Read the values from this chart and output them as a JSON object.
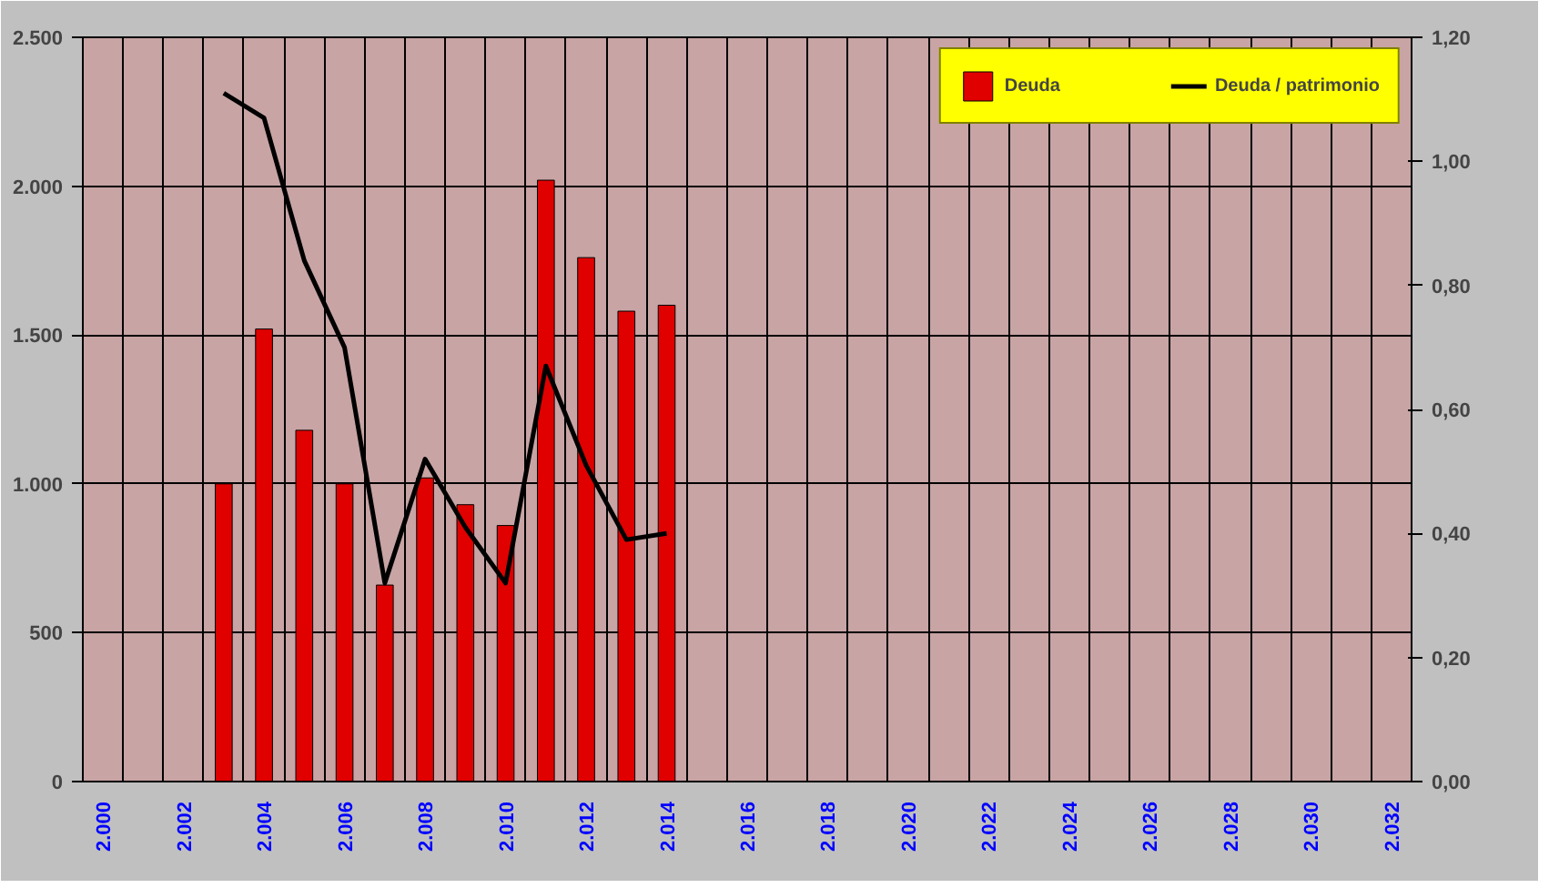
{
  "chart_data": {
    "type": "bar",
    "categories": [
      "2.000",
      null,
      "2.002",
      null,
      "2.004",
      null,
      "2.006",
      null,
      "2.008",
      null,
      "2.010",
      null,
      "2.012",
      null,
      "2.014",
      null,
      "2.016",
      null,
      "2.018",
      null,
      "2.020",
      null,
      "2.022",
      null,
      "2.024",
      null,
      "2.026",
      null,
      "2.028",
      null,
      "2.030",
      null,
      "2.032"
    ],
    "series": [
      {
        "name": "Deuda",
        "color": "#e00000",
        "values": [
          null,
          null,
          null,
          1000,
          1520,
          1180,
          1000,
          660,
          1020,
          930,
          860,
          2020,
          1760,
          1580,
          1600,
          null,
          null,
          null,
          null,
          null,
          null,
          null,
          null,
          null,
          null,
          null,
          null,
          null,
          null,
          null,
          null,
          null,
          null
        ]
      },
      {
        "name": "Deuda / patrimonio",
        "type": "line",
        "axis": "y2",
        "color": "#000000",
        "values": [
          null,
          null,
          null,
          1.11,
          1.07,
          0.84,
          0.7,
          0.32,
          0.52,
          0.41,
          0.32,
          0.67,
          0.51,
          0.39,
          0.4,
          null,
          null,
          null,
          null,
          null,
          null,
          null,
          null,
          null,
          null,
          null,
          null,
          null,
          null,
          null,
          null,
          null,
          null
        ]
      }
    ],
    "ylim": [
      0,
      2500
    ],
    "yticks": [
      0,
      500,
      {
        "value": 1000,
        "label": "1.000"
      },
      {
        "value": 1500,
        "label": "1.500"
      },
      {
        "value": 2000,
        "label": "2.000"
      },
      {
        "value": 2500,
        "label": "2.500"
      }
    ],
    "y2lim": [
      0,
      1.2
    ],
    "y2ticks": [
      {
        "value": 0,
        "label": "0,00"
      },
      {
        "value": 0.2,
        "label": "0,20"
      },
      {
        "value": 0.4,
        "label": "0,40"
      },
      {
        "value": 0.6,
        "label": "0,60"
      },
      {
        "value": 0.8,
        "label": "0,80"
      },
      {
        "value": 1.0,
        "label": "1,00"
      },
      {
        "value": 1.2,
        "label": "1,20"
      }
    ],
    "grid": true,
    "legend": "top right",
    "marker": "none",
    "line_style": "solid"
  }
}
